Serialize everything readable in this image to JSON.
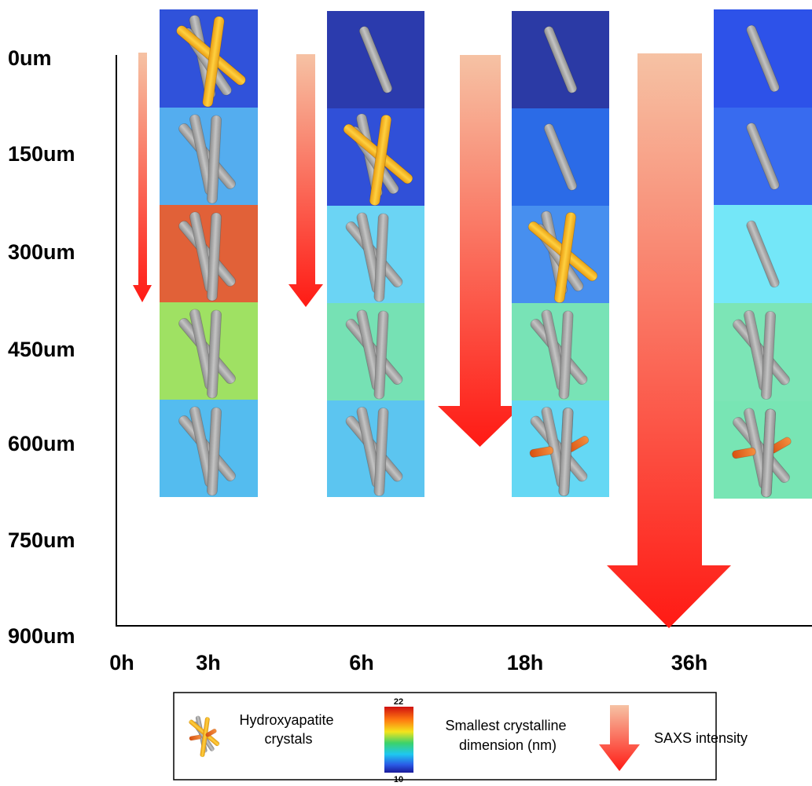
{
  "depth_labels": [
    "0um",
    "150um",
    "300um",
    "450um",
    "600um",
    "750um",
    "900um"
  ],
  "time_labels": [
    "0h",
    "3h",
    "6h",
    "18h",
    "36h"
  ],
  "columns": [
    {
      "time": "3h",
      "cells": [
        {
          "color": "#2448d8",
          "crystal": "yellow"
        },
        {
          "color": "#4aa8ee",
          "crystal": "gray"
        },
        {
          "color": "#e0582c",
          "crystal": "gray"
        },
        {
          "color": "#9ae05a",
          "crystal": "gray"
        },
        {
          "color": "#4ab8ee",
          "crystal": "gray"
        }
      ]
    },
    {
      "time": "6h",
      "cells": [
        {
          "color": "#1e2fa8",
          "crystal": "single"
        },
        {
          "color": "#2446d6",
          "crystal": "yellow"
        },
        {
          "color": "#62d2f4",
          "crystal": "gray"
        },
        {
          "color": "#6ee0b0",
          "crystal": "gray"
        },
        {
          "color": "#52c2f0",
          "crystal": "gray"
        }
      ]
    },
    {
      "time": "18h",
      "cells": [
        {
          "color": "#1e2ea0",
          "crystal": "single"
        },
        {
          "color": "#1e62e6",
          "crystal": "single"
        },
        {
          "color": "#3c88ee",
          "crystal": "yellow"
        },
        {
          "color": "#70e2b2",
          "crystal": "gray"
        },
        {
          "color": "#5cd6f4",
          "crystal": "orange"
        }
      ]
    },
    {
      "time": "36h",
      "cells": [
        {
          "color": "#2048e8",
          "crystal": "single"
        },
        {
          "color": "#2c62ee",
          "crystal": "single"
        },
        {
          "color": "#6ce6f8",
          "crystal": "single"
        },
        {
          "color": "#74e4b2",
          "crystal": "gray"
        },
        {
          "color": "#70e4b0",
          "crystal": "orange"
        }
      ]
    }
  ],
  "legend": {
    "crystals_label": "Hydroxyapatite\ncrystals",
    "colorbar_max": "22",
    "colorbar_min": "10",
    "dimension_label": "Smallest crystalline\ndimension (nm)",
    "saxs_label": "SAXS intensity"
  },
  "colors": {
    "crystal_gray": "#a8a8a8",
    "crystal_yellow": "#f4b41c",
    "crystal_orange": "#ee6a1c",
    "arrow_top": "#f6c2a4",
    "arrow_bottom": "#ff1a14"
  }
}
